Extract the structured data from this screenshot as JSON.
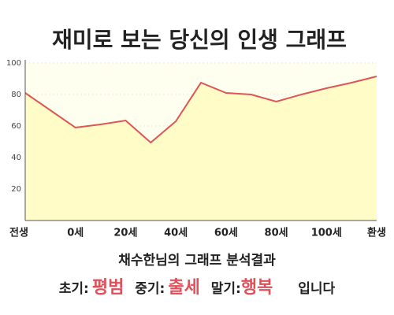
{
  "chart_data": {
    "type": "line",
    "title": "재미로 보는 당신의 인생 그래프",
    "categories": [
      "전생",
      null,
      "0세",
      null,
      "20세",
      null,
      "40세",
      null,
      "60세",
      null,
      "80세",
      null,
      "100세",
      null,
      "환생"
    ],
    "values": [
      81,
      70,
      59,
      61,
      63.5,
      49.5,
      63,
      87.5,
      81,
      80,
      75.5,
      80,
      84,
      87.5,
      91.5
    ],
    "color": "#dd5555",
    "fill": "#fffcc8",
    "ylim": [
      0,
      100
    ],
    "yticks": [
      20,
      40,
      60,
      80,
      100
    ],
    "grid": true
  },
  "result": {
    "heading": "채수한님의 그래프 분석결과",
    "items": [
      {
        "label": "초기:",
        "value": "평범"
      },
      {
        "label": "중기:",
        "value": "출세"
      },
      {
        "label": "말기:",
        "value": "행복"
      }
    ],
    "closing": "입니다"
  }
}
